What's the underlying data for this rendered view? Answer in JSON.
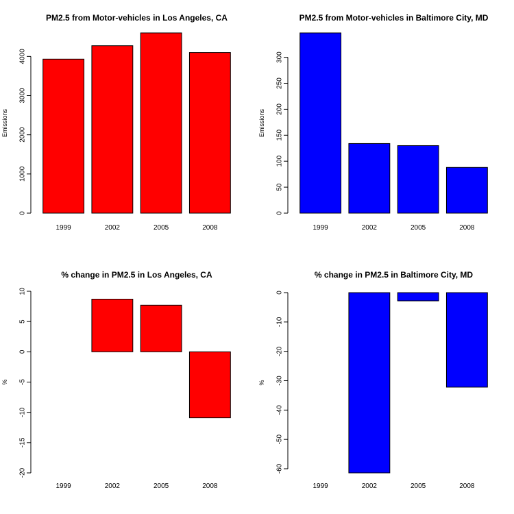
{
  "chart_data": [
    {
      "type": "bar",
      "title": "PM2.5 from Motor-vehicles in Los Angeles, CA",
      "xlabel": "",
      "ylabel": "Emissions",
      "categories": [
        "1999",
        "2002",
        "2005",
        "2008"
      ],
      "values": [
        3931,
        4274,
        4601,
        4101
      ],
      "ylim": [
        0,
        4601
      ],
      "yticks": [
        0,
        1000,
        2000,
        3000,
        4000
      ],
      "bar_color": "#ff0000",
      "grid": false,
      "legend": "none"
    },
    {
      "type": "bar",
      "title": "PM2.5 from Motor-vehicles in Baltimore City, MD",
      "xlabel": "",
      "ylabel": "Emissions",
      "categories": [
        "1999",
        "2002",
        "2005",
        "2008"
      ],
      "values": [
        347,
        134,
        130,
        88
      ],
      "ylim": [
        0,
        347
      ],
      "yticks": [
        0,
        50,
        100,
        150,
        200,
        250,
        300
      ],
      "bar_color": "#0000ff",
      "grid": false,
      "legend": "none"
    },
    {
      "type": "bar",
      "title": "% change in PM2.5 in Los Angeles, CA",
      "xlabel": "",
      "ylabel": "%",
      "categories": [
        "1999",
        "2002",
        "2005",
        "2008"
      ],
      "values": [
        0,
        8.7,
        7.7,
        -10.9
      ],
      "ylim": [
        -20,
        10
      ],
      "yticks": [
        -20,
        -15,
        -10,
        -5,
        0,
        5,
        10
      ],
      "bar_color": "#ff0000",
      "grid": false,
      "legend": "none"
    },
    {
      "type": "bar",
      "title": "% change in PM2.5 in Baltimore City, MD",
      "xlabel": "",
      "ylabel": "%",
      "categories": [
        "1999",
        "2002",
        "2005",
        "2008"
      ],
      "values": [
        0,
        -61.4,
        -2.8,
        -32.2
      ],
      "ylim": [
        -61.4,
        0
      ],
      "yticks": [
        -60,
        -50,
        -40,
        -30,
        -20,
        -10,
        0
      ],
      "bar_color": "#0000ff",
      "grid": false,
      "legend": "none"
    }
  ]
}
